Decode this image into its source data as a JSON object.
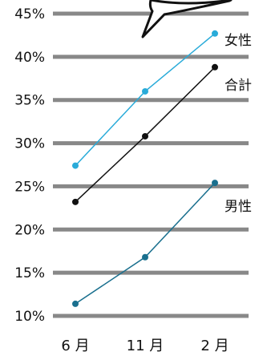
{
  "chart_data": {
    "type": "line",
    "categories": [
      "6 月",
      "11 月",
      "2 月"
    ],
    "y_ticks": [
      "45%",
      "40%",
      "35%",
      "30%",
      "25%",
      "20%",
      "15%",
      "10%"
    ],
    "ylim": [
      10,
      45
    ],
    "grid": true,
    "series": [
      {
        "name": "女性",
        "values": [
          27.4,
          36.0,
          42.7
        ],
        "color": "#29abd9"
      },
      {
        "name": "合計",
        "values": [
          23.2,
          30.8,
          38.8
        ],
        "color": "#111111"
      },
      {
        "name": "男性",
        "values": [
          11.4,
          16.8,
          25.4
        ],
        "color": "#196f8e"
      }
    ],
    "grid_color": "#888888"
  }
}
